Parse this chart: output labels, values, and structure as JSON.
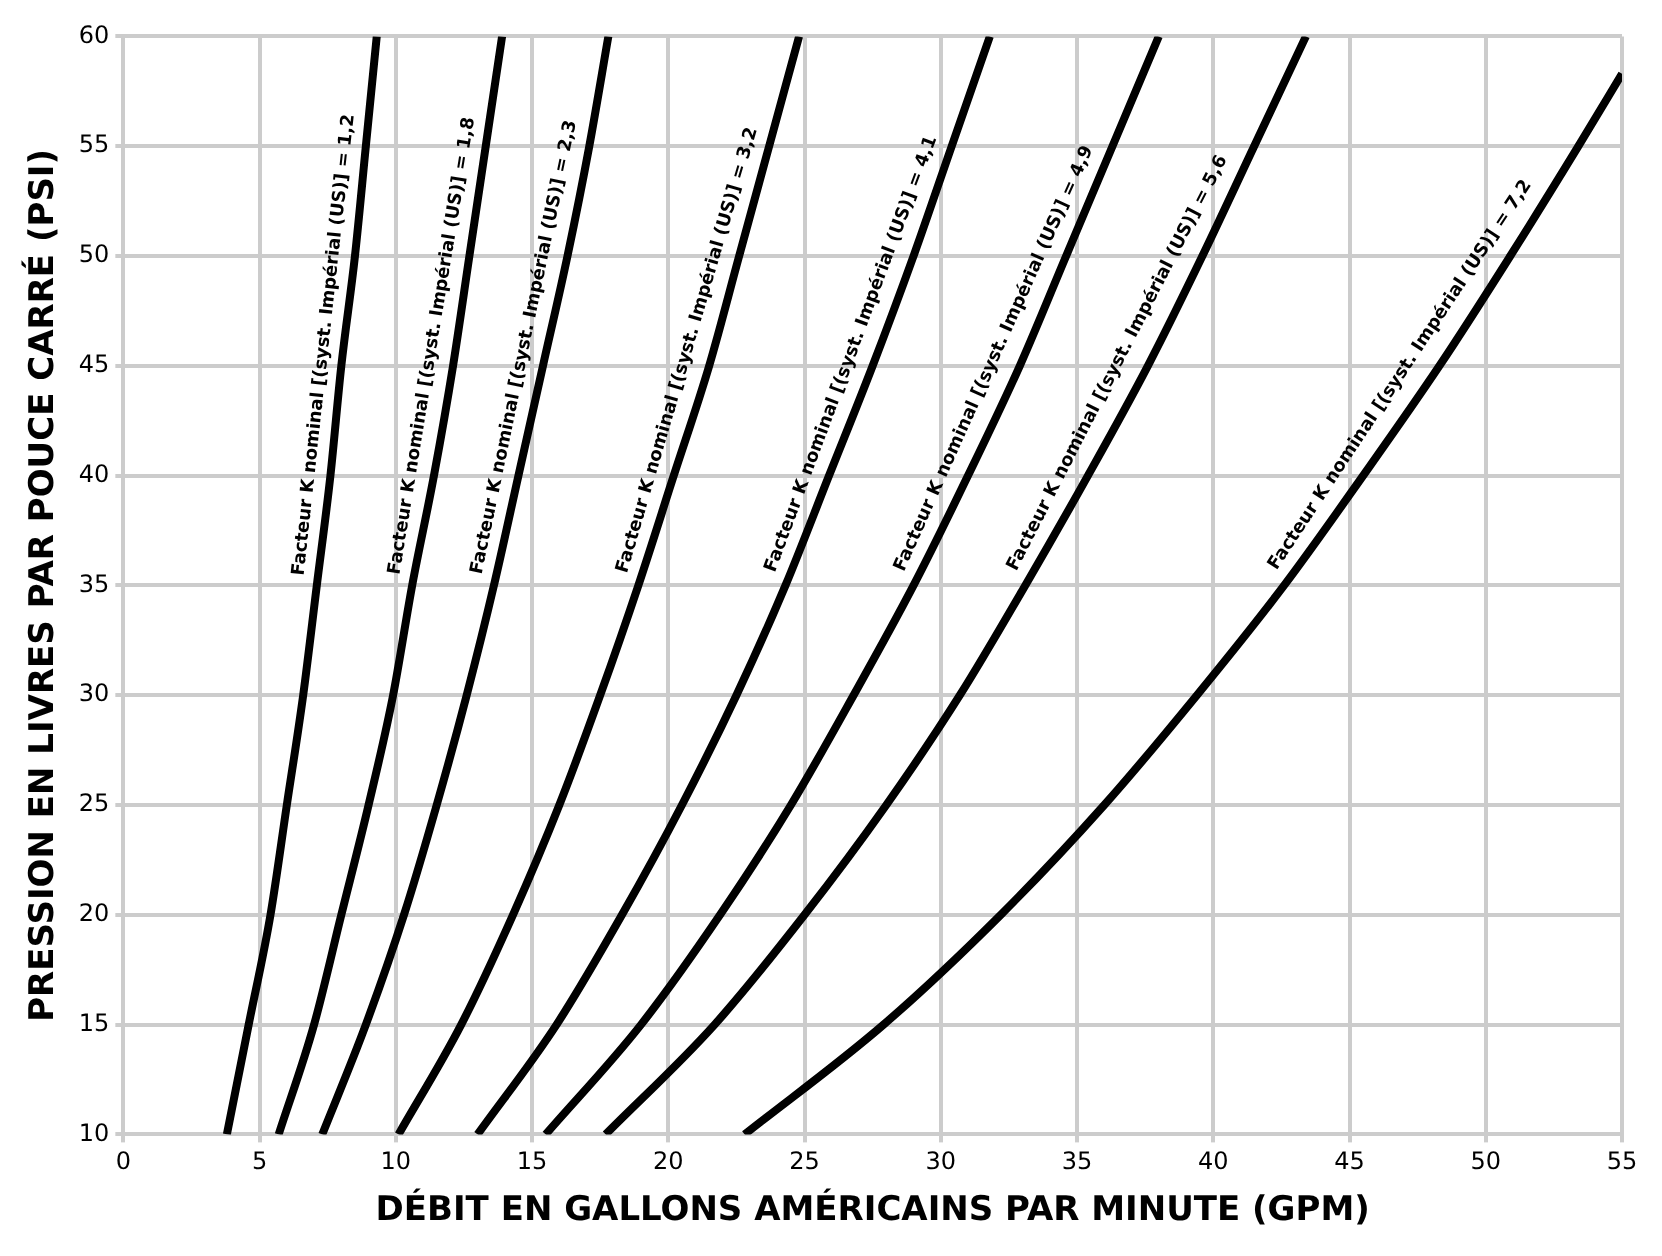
{
  "chart_data": {
    "type": "line",
    "xlabel": "DÉBIT EN GALLONS AMÉRICAINS PAR MINUTE (GPM)",
    "ylabel": "PRESSION EN LIVRES PAR POUCE CARRÉ (PSI)",
    "xlim": [
      0,
      55
    ],
    "xticks": [
      0,
      5,
      10,
      15,
      20,
      25,
      30,
      35,
      40,
      45,
      50,
      55
    ],
    "ylim": [
      10,
      60
    ],
    "yticks": [
      10,
      15,
      20,
      25,
      30,
      35,
      40,
      45,
      50,
      55,
      60
    ],
    "grid": true,
    "legend": false,
    "marker": "none",
    "line_style": "solid",
    "series": [
      {
        "color": "#000000",
        "x": [
          3.8,
          4.6,
          5.4,
          6.0,
          6.6,
          7.1,
          7.6,
          8.0,
          8.5,
          8.9,
          9.3
        ],
        "values": [
          10,
          15,
          20,
          25,
          30,
          35,
          40,
          45,
          50,
          55,
          60
        ]
      },
      {
        "color": "#000000",
        "x": [
          5.7,
          7.0,
          8.0,
          9.0,
          9.9,
          10.6,
          11.4,
          12.1,
          12.7,
          13.3,
          13.9
        ],
        "values": [
          10,
          15,
          20,
          25,
          30,
          35,
          40,
          45,
          50,
          55,
          60
        ]
      },
      {
        "color": "#000000",
        "x": [
          7.3,
          8.9,
          10.3,
          11.5,
          12.6,
          13.6,
          14.5,
          15.4,
          16.3,
          17.1,
          17.8
        ],
        "values": [
          10,
          15,
          20,
          25,
          30,
          35,
          40,
          45,
          50,
          55,
          60
        ]
      },
      {
        "color": "#000000",
        "x": [
          10.1,
          12.4,
          14.3,
          16.0,
          17.5,
          18.9,
          20.2,
          21.5,
          22.6,
          23.7,
          24.8
        ],
        "values": [
          10,
          15,
          20,
          25,
          30,
          35,
          40,
          45,
          50,
          55,
          60
        ]
      },
      {
        "color": "#000000",
        "x": [
          13.0,
          15.9,
          18.3,
          20.5,
          22.5,
          24.3,
          25.9,
          27.5,
          29.0,
          30.4,
          31.8
        ],
        "values": [
          10,
          15,
          20,
          25,
          30,
          35,
          40,
          45,
          50,
          55,
          60
        ]
      },
      {
        "color": "#000000",
        "x": [
          15.5,
          19.0,
          21.9,
          24.5,
          26.8,
          29.0,
          31.0,
          32.9,
          34.6,
          36.3,
          38.0
        ],
        "values": [
          10,
          15,
          20,
          25,
          30,
          35,
          40,
          45,
          50,
          55,
          60
        ]
      },
      {
        "color": "#000000",
        "x": [
          17.7,
          21.7,
          25.0,
          28.0,
          30.7,
          33.1,
          35.4,
          37.6,
          39.6,
          41.5,
          43.4
        ],
        "values": [
          10,
          15,
          20,
          25,
          30,
          35,
          40,
          45,
          50,
          55,
          60
        ]
      },
      {
        "color": "#000000",
        "x": [
          22.8,
          27.9,
          32.2,
          36.0,
          39.4,
          42.6,
          45.5,
          48.3,
          50.9,
          53.4,
          55
        ],
        "values": [
          10,
          15,
          20,
          25,
          30,
          35,
          40,
          45,
          50,
          55,
          58.3
        ]
      }
    ],
    "annotations": [
      {
        "text": "Facteur K nominal [(syst. Impérial (US)] = 1,2",
        "x": 7.1,
        "y": 35
      },
      {
        "text": "Facteur K nominal [(syst. Impérial (US)] = 1,8",
        "x": 10.6,
        "y": 35
      },
      {
        "text": "Facteur K nominal [(syst. Impérial (US)] = 2,3",
        "x": 13.6,
        "y": 35
      },
      {
        "text": "Facteur K nominal [(syst. Impérial (US)] = 3,2",
        "x": 18.9,
        "y": 35
      },
      {
        "text": "Facteur K nominal [(syst. Impérial (US)] = 4,1",
        "x": 24.3,
        "y": 35
      },
      {
        "text": "Facteur K nominal [(syst. Impérial (US)] = 4,9",
        "x": 29.0,
        "y": 35
      },
      {
        "text": "Facteur K nominal [(syst. Impérial (US)] = 5,6",
        "x": 33.1,
        "y": 35
      },
      {
        "text": "Facteur K nominal [(syst. Impérial (US)] = 7,2",
        "x": 42.6,
        "y": 35
      }
    ]
  }
}
